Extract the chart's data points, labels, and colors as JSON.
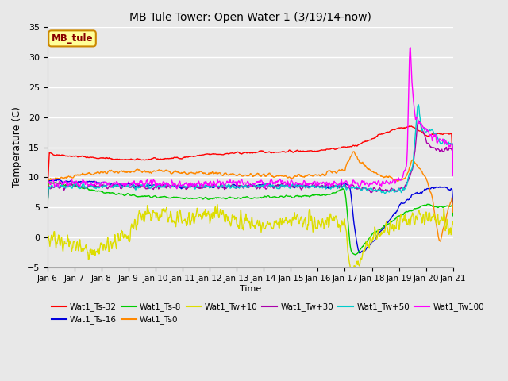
{
  "title": "MB Tule Tower: Open Water 1 (3/19/14-now)",
  "xlabel": "Time",
  "ylabel": "Temperature (C)",
  "ylim": [
    -5,
    35
  ],
  "xlim": [
    0,
    15
  ],
  "background_color": "#e8e8e8",
  "plot_bg_color": "#e8e8e8",
  "grid_color": "#ffffff",
  "x_tick_labels": [
    "Jan 6",
    "Jan 7",
    "Jan 8",
    "Jan 9",
    "Jan 10",
    "Jan 11",
    "Jan 12",
    "Jan 13",
    "Jan 14",
    "Jan 15",
    "Jan 16",
    "Jan 17",
    "Jan 18",
    "Jan 19",
    "Jan 20",
    "Jan 21"
  ],
  "colors": {
    "red": "#ff0000",
    "blue": "#0000dd",
    "green": "#00cc00",
    "orange": "#ff8800",
    "yellow": "#dddd00",
    "purple": "#aa00aa",
    "cyan": "#00cccc",
    "magenta": "#ff00ff"
  },
  "legend_labels": [
    "Wat1_Ts-32",
    "Wat1_Ts-16",
    "Wat1_Ts-8",
    "Wat1_Ts0",
    "Wat1_Tw+10",
    "Wat1_Tw+30",
    "Wat1_Tw+50",
    "Wat1_Tw100"
  ],
  "legend_box": {
    "text": "MB_tule",
    "bg": "#ffff99",
    "edge": "#cc8800",
    "text_color": "#880000"
  }
}
